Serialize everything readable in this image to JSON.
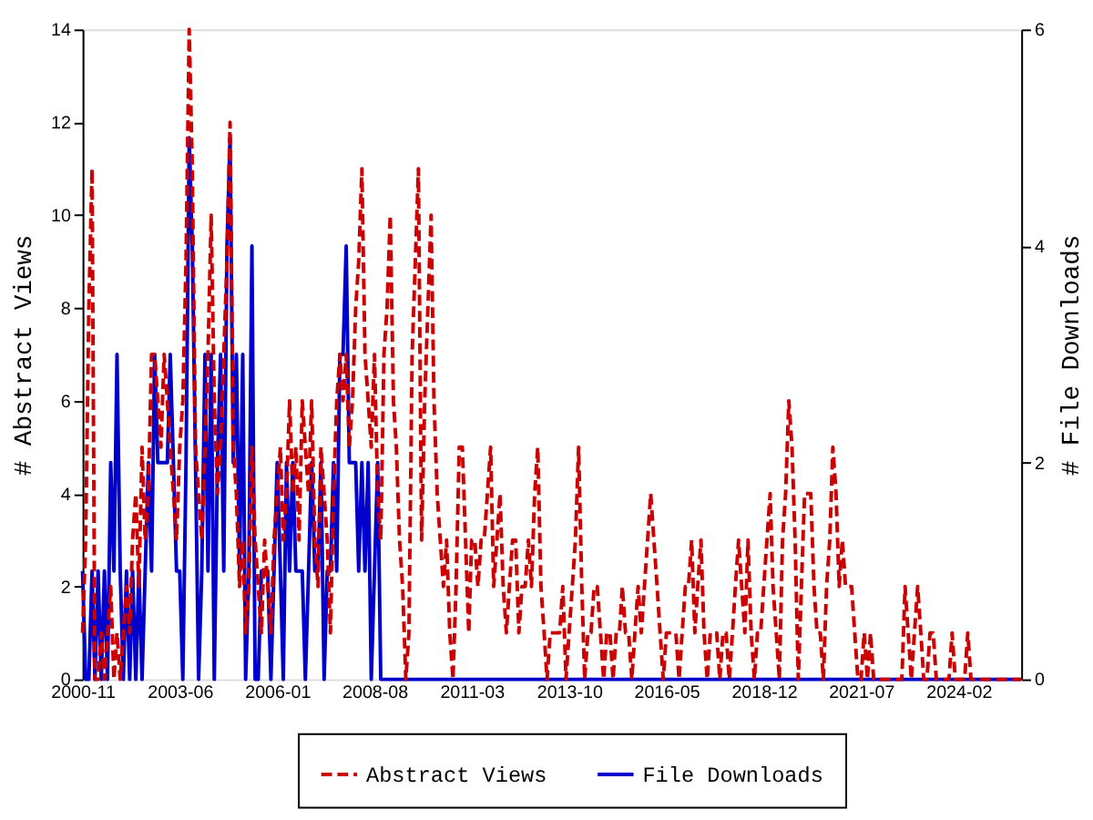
{
  "chart_data": {
    "type": "line",
    "ylabel": "# Abstract Views",
    "y2label": "# File Downloads",
    "x": [
      "2000-11",
      "2000-12",
      "2001-01",
      "2001-02",
      "2001-03",
      "2001-04",
      "2001-05",
      "2001-06",
      "2001-07",
      "2001-08",
      "2001-09",
      "2001-10",
      "2001-11",
      "2001-12",
      "2002-01",
      "2002-02",
      "2002-03",
      "2002-04",
      "2002-05",
      "2002-06",
      "2002-07",
      "2002-08",
      "2002-09",
      "2002-10",
      "2002-11",
      "2002-12",
      "2003-01",
      "2003-02",
      "2003-03",
      "2003-04",
      "2003-05",
      "2003-06",
      "2003-07",
      "2003-08",
      "2003-09",
      "2003-10",
      "2003-11",
      "2003-12",
      "2004-01",
      "2004-02",
      "2004-03",
      "2004-04",
      "2004-05",
      "2004-06",
      "2004-07",
      "2004-08",
      "2004-09",
      "2004-10",
      "2004-11",
      "2004-12",
      "2005-01",
      "2005-02",
      "2005-03",
      "2005-04",
      "2005-05",
      "2005-06",
      "2005-07",
      "2005-08",
      "2005-09",
      "2005-10",
      "2005-11",
      "2005-12",
      "2006-01",
      "2006-02",
      "2006-03",
      "2006-04",
      "2006-05",
      "2006-06",
      "2006-07",
      "2006-08",
      "2006-09",
      "2006-10",
      "2006-11",
      "2006-12",
      "2007-01",
      "2007-02",
      "2007-03",
      "2007-04",
      "2007-05",
      "2007-06",
      "2007-07",
      "2007-08",
      "2007-09",
      "2007-10",
      "2007-11",
      "2007-12",
      "2008-01",
      "2008-02",
      "2008-03",
      "2008-04",
      "2008-05",
      "2008-06",
      "2008-07",
      "2008-08",
      "2008-09",
      "2008-10",
      "2008-11",
      "2008-12",
      "2009-01",
      "2009-02",
      "2009-03",
      "2009-04",
      "2009-05",
      "2009-06",
      "2009-07",
      "2009-08",
      "2009-09",
      "2009-10",
      "2009-11",
      "2009-12",
      "2010-01",
      "2010-02",
      "2010-03",
      "2010-04",
      "2010-05",
      "2010-06",
      "2010-07",
      "2010-08",
      "2010-09",
      "2010-10",
      "2010-11",
      "2010-12",
      "2011-01",
      "2011-02",
      "2011-03",
      "2011-04",
      "2011-05",
      "2011-06",
      "2011-07",
      "2011-08",
      "2011-09",
      "2011-10",
      "2011-11",
      "2011-12",
      "2012-01",
      "2012-02",
      "2012-03",
      "2012-04",
      "2012-05",
      "2012-06",
      "2012-07",
      "2012-08",
      "2012-09",
      "2012-10",
      "2012-11",
      "2012-12",
      "2013-01",
      "2013-02",
      "2013-03",
      "2013-04",
      "2013-05",
      "2013-06",
      "2013-07",
      "2013-08",
      "2013-09",
      "2013-10",
      "2013-11",
      "2013-12",
      "2014-01",
      "2014-02",
      "2014-03",
      "2014-04",
      "2014-05",
      "2014-06",
      "2014-07",
      "2014-08",
      "2014-09",
      "2014-10",
      "2014-11",
      "2014-12",
      "2015-01",
      "2015-02",
      "2015-03",
      "2015-04",
      "2015-05",
      "2015-06",
      "2015-07",
      "2015-08",
      "2015-09",
      "2015-10",
      "2015-11",
      "2015-12",
      "2016-01",
      "2016-02",
      "2016-03",
      "2016-04",
      "2016-05",
      "2016-06",
      "2016-07",
      "2016-08",
      "2016-09",
      "2016-10",
      "2016-11",
      "2016-12",
      "2017-01",
      "2017-02",
      "2017-03",
      "2017-04",
      "2017-05",
      "2017-06",
      "2017-07",
      "2017-08",
      "2017-09",
      "2017-10",
      "2017-11",
      "2017-12",
      "2018-01",
      "2018-02",
      "2018-03",
      "2018-04",
      "2018-05",
      "2018-06",
      "2018-07",
      "2018-08",
      "2018-09",
      "2018-10",
      "2018-11",
      "2018-12",
      "2019-01",
      "2019-02",
      "2019-03",
      "2019-04",
      "2019-05",
      "2019-06",
      "2019-07",
      "2019-08",
      "2019-09",
      "2019-10",
      "2019-11",
      "2019-12",
      "2020-01",
      "2020-02",
      "2020-03",
      "2020-04",
      "2020-05",
      "2020-06",
      "2020-07",
      "2020-08",
      "2020-09",
      "2020-10",
      "2020-11",
      "2020-12",
      "2021-01",
      "2021-02",
      "2021-03",
      "2021-04",
      "2021-05",
      "2021-06",
      "2021-07",
      "2021-08",
      "2021-09",
      "2021-10",
      "2021-11",
      "2021-12",
      "2022-01",
      "2022-02",
      "2022-03",
      "2022-04",
      "2022-05",
      "2022-06",
      "2022-07",
      "2022-08",
      "2022-09",
      "2022-10",
      "2022-11",
      "2022-12",
      "2023-01",
      "2023-02",
      "2023-03",
      "2023-04",
      "2023-05",
      "2023-06",
      "2023-07",
      "2023-08",
      "2023-09",
      "2023-10",
      "2023-11",
      "2023-12",
      "2024-01",
      "2024-02",
      "2024-03",
      "2024-04",
      "2024-05",
      "2024-06",
      "2024-07",
      "2024-08",
      "2024-09",
      "2024-10",
      "2024-11",
      "2024-12",
      "2025-10"
    ],
    "series": [
      {
        "name": "Abstract Views",
        "color": "#cc0000",
        "line_style": "dashed",
        "values": [
          1,
          3,
          8,
          11,
          0,
          0,
          1,
          0,
          1,
          2,
          0,
          1,
          0,
          1,
          2,
          1,
          3,
          4,
          2,
          5,
          3,
          4,
          7,
          7,
          6,
          5,
          7,
          6,
          5,
          4,
          3,
          5,
          6,
          9,
          14,
          11,
          5,
          4,
          3,
          5,
          7,
          10,
          6,
          4,
          5,
          7,
          9,
          12,
          5,
          4,
          2,
          3,
          1,
          2,
          5,
          3,
          2,
          1,
          3,
          2,
          1,
          3,
          4,
          5,
          3,
          4,
          6,
          4,
          5,
          3,
          6,
          5,
          4,
          6,
          3,
          2,
          5,
          4,
          3,
          1,
          4,
          6,
          7,
          6,
          7,
          5,
          6,
          8,
          9,
          11,
          7,
          6,
          5,
          7,
          4,
          3,
          7,
          8,
          10,
          6,
          5,
          3,
          2,
          0,
          1,
          7,
          9,
          11,
          3,
          6,
          8,
          10,
          6,
          4,
          3,
          2,
          3,
          1,
          0,
          2,
          5,
          5,
          3,
          1,
          3,
          3,
          2,
          3,
          3,
          4,
          5,
          2,
          3,
          4,
          2,
          1,
          2,
          3,
          3,
          1,
          2,
          2,
          3,
          2,
          4,
          5,
          2,
          1,
          0,
          1,
          1,
          1,
          1,
          2,
          0,
          1,
          2,
          3,
          5,
          2,
          0,
          1,
          1,
          2,
          2,
          1,
          0,
          1,
          1,
          0,
          1,
          1,
          2,
          1,
          1,
          0,
          1,
          2,
          1,
          2,
          3,
          4,
          3,
          2,
          1,
          0,
          1,
          1,
          1,
          1,
          0,
          1,
          2,
          2,
          3,
          1,
          2,
          3,
          1,
          0,
          1,
          1,
          1,
          0,
          1,
          1,
          0,
          1,
          2,
          3,
          2,
          1,
          3,
          1,
          0,
          1,
          1,
          2,
          3,
          4,
          2,
          1,
          0,
          3,
          4,
          6,
          5,
          3,
          0,
          2,
          4,
          4,
          4,
          2,
          1,
          1,
          0,
          2,
          3,
          5,
          4,
          2,
          3,
          2,
          2,
          2,
          1,
          0,
          0,
          1,
          0,
          1,
          0,
          0,
          0,
          0,
          0,
          0,
          0,
          0,
          0,
          0,
          2,
          1,
          0,
          1,
          2,
          1,
          0,
          0,
          1,
          1,
          0,
          0,
          0,
          0,
          0,
          1,
          0,
          0,
          0,
          0,
          1,
          0,
          0,
          0,
          0,
          0,
          0,
          0,
          0
        ]
      },
      {
        "name": "File Downloads",
        "color": "#0000cc",
        "line_style": "solid",
        "axis": "y2",
        "x": [
          "2000-11",
          "2000-12",
          "2001-01",
          "2001-02",
          "2001-03",
          "2001-04",
          "2001-05",
          "2001-06",
          "2001-07",
          "2001-08",
          "2001-09",
          "2001-10",
          "2001-11",
          "2001-12",
          "2002-01",
          "2002-02",
          "2002-03",
          "2002-04",
          "2002-05",
          "2002-06",
          "2002-07",
          "2002-08",
          "2002-09",
          "2002-10",
          "2002-11",
          "2002-12",
          "2003-01",
          "2003-02",
          "2003-03",
          "2003-04",
          "2003-05",
          "2003-06",
          "2003-07",
          "2003-08",
          "2003-09",
          "2003-10",
          "2003-11",
          "2003-12",
          "2004-01",
          "2004-02",
          "2004-03",
          "2004-04",
          "2004-05",
          "2004-06",
          "2004-07",
          "2004-08",
          "2004-09",
          "2004-10",
          "2004-11",
          "2004-12",
          "2005-01",
          "2005-02",
          "2005-03",
          "2005-04",
          "2005-05",
          "2005-06",
          "2005-07",
          "2005-08",
          "2005-09",
          "2005-10",
          "2005-11",
          "2005-12",
          "2006-01",
          "2006-02",
          "2006-03",
          "2006-04",
          "2006-05",
          "2006-06",
          "2006-07",
          "2006-08",
          "2006-09",
          "2006-10",
          "2006-11",
          "2006-12",
          "2007-01",
          "2007-02",
          "2007-03",
          "2007-04",
          "2007-05",
          "2007-06",
          "2007-07",
          "2007-08",
          "2007-09",
          "2007-10",
          "2007-11",
          "2007-12",
          "2008-01",
          "2008-02",
          "2008-03",
          "2008-04",
          "2008-05",
          "2008-06",
          "2008-07",
          "2008-08",
          "2008-09",
          "2008-10",
          "2008-11",
          "2008-12",
          "2025-10"
        ],
        "values": [
          1,
          0,
          0,
          1,
          0,
          1,
          0,
          1,
          0,
          2,
          1,
          3,
          1,
          0,
          1,
          0,
          1,
          0,
          1,
          0,
          1,
          2,
          1,
          3,
          2,
          2,
          2,
          2,
          3,
          2,
          1,
          1,
          0,
          2,
          5,
          4,
          2,
          0,
          1,
          3,
          1,
          3,
          0,
          2,
          3,
          1,
          4,
          5,
          2,
          3,
          1,
          3,
          0,
          1,
          4,
          0,
          0,
          1,
          1,
          1,
          0,
          1,
          2,
          1,
          0,
          2,
          1,
          2,
          1,
          1,
          1,
          0,
          1,
          2,
          1,
          1,
          2,
          0,
          1,
          1,
          2,
          1,
          3,
          3,
          4,
          2,
          2,
          2,
          1,
          2,
          1,
          2,
          0,
          1,
          2,
          0,
          0,
          0,
          0
        ]
      }
    ],
    "xlim": [
      "2000-11",
      "2025-10"
    ],
    "xticks": [
      "2000-11",
      "2003-06",
      "2006-01",
      "2008-08",
      "2011-03",
      "2013-10",
      "2016-05",
      "2018-12",
      "2021-07",
      "2024-02"
    ],
    "ylim": [
      0,
      14
    ],
    "yticks": [
      0,
      2,
      4,
      6,
      8,
      10,
      12,
      14
    ],
    "y2lim": [
      0,
      6
    ],
    "y2ticks": [
      0,
      2,
      4,
      6
    ],
    "legend": "bottom"
  }
}
